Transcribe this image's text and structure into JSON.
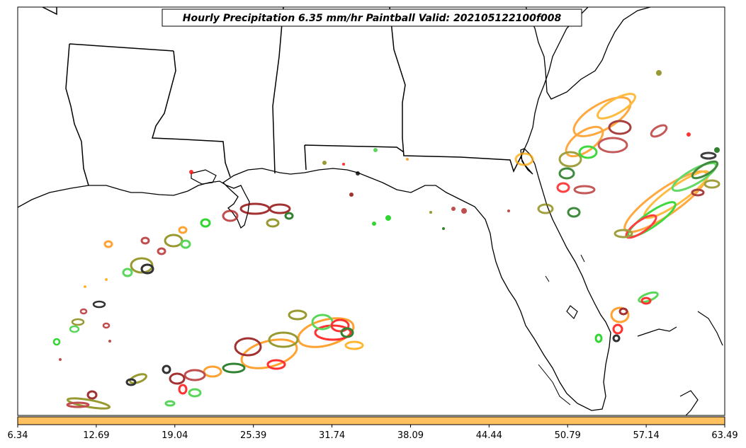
{
  "title": "Hourly Precipitation 6.35 mm/hr Paintball Valid: 202105122100f008",
  "colorbar": {
    "fill_color": "#ffc060",
    "tick_labels": [
      "6.34",
      "12.69",
      "19.04",
      "25.39",
      "31.74",
      "38.09",
      "44.44",
      "50.79",
      "57.14",
      "63.49"
    ]
  },
  "member_colors": [
    "#ff0000",
    "#8b0000",
    "#ff8c00",
    "#ffa500",
    "#00cc00",
    "#006400",
    "#808000",
    "#000000",
    "#b22222",
    "#32cd32"
  ]
}
